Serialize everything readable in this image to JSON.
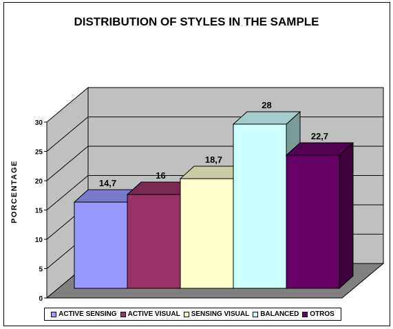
{
  "chart_data": {
    "type": "bar",
    "title": "DISTRIBUTION OF STYLES IN THE SAMPLE",
    "xlabel": "",
    "ylabel": "PORCENTAGE",
    "ylim": [
      0,
      30
    ],
    "yticks": [
      0,
      5,
      10,
      15,
      20,
      25,
      30
    ],
    "categories": [
      "ACTIVE SENSING",
      "ACTIVE VISUAL",
      "SENSING VISUAL",
      "BALANCED",
      "OTROS"
    ],
    "values": [
      14.7,
      16,
      18.7,
      28,
      22.7
    ],
    "data_labels": [
      "14,7",
      "16",
      "18,7",
      "28",
      "22,7"
    ],
    "colors": [
      "#9999ff",
      "#993366",
      "#ffffcc",
      "#ccffff",
      "#660066"
    ],
    "grid": true,
    "legend_position": "bottom",
    "style": "3d"
  }
}
